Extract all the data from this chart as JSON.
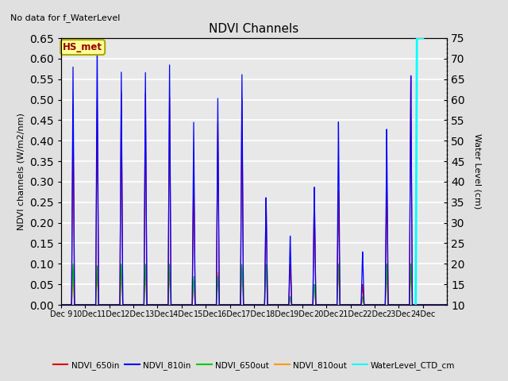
{
  "title": "NDVI Channels",
  "no_data_text": "No data for f_WaterLevel",
  "station_label": "HS_met",
  "ylabel_left": "NDVI channels (W/m2/nm)",
  "ylabel_right": "Water Level (cm)",
  "ylim_left": [
    0.0,
    0.65
  ],
  "ylim_right": [
    10,
    75
  ],
  "fig_bg": "#e0e0e0",
  "plot_bg": "#e8e8e8",
  "colors": {
    "NDVI_650in": "#dd0000",
    "NDVI_810in": "#0000ff",
    "NDVI_650out": "#00cc00",
    "NDVI_810out": "#ff9900",
    "WaterLevel": "#00ffff"
  },
  "x_tick_labels": [
    "Dec 9",
    "Dec 10",
    "Dec 11",
    "Dec 12",
    "Dec 13",
    "Dec 14",
    "Dec 15",
    "Dec 16",
    "Dec 17",
    "Dec 18",
    "Dec 19",
    "Dec 20",
    "Dec 21",
    "Dec 22",
    "Dec 23",
    "Dec 24"
  ],
  "peaks_810in": [
    0.58,
    0.65,
    0.57,
    0.57,
    0.59,
    0.45,
    0.51,
    0.57,
    0.265,
    0.17,
    0.29,
    0.45,
    0.13,
    0.43,
    0.56,
    0.0
  ],
  "peaks_650in": [
    0.49,
    0.5,
    0.52,
    0.52,
    0.51,
    0.34,
    0.45,
    0.51,
    0.265,
    0.1,
    0.28,
    0.28,
    0.05,
    0.32,
    0.56,
    0.0
  ],
  "peaks_650out": [
    0.1,
    0.095,
    0.1,
    0.1,
    0.1,
    0.07,
    0.07,
    0.1,
    0.1,
    0.02,
    0.05,
    0.1,
    0.02,
    0.1,
    0.1,
    0.0
  ],
  "peaks_810out": [
    0.07,
    0.08,
    0.08,
    0.08,
    0.08,
    0.05,
    0.08,
    0.09,
    0.1,
    0.01,
    0.05,
    0.1,
    0.01,
    0.08,
    0.09,
    0.0
  ],
  "legend_entries": [
    "NDVI_650in",
    "NDVI_810in",
    "NDVI_650out",
    "NDVI_810out",
    "WaterLevel_CTD_cm"
  ]
}
